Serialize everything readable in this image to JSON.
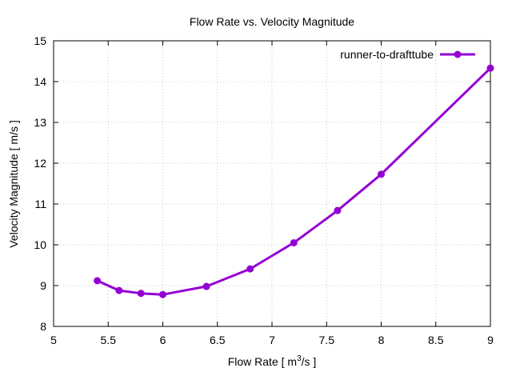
{
  "chart_data": {
    "type": "line",
    "title": "Flow Rate vs. Velocity Magnitude",
    "xlabel_prefix": "Flow Rate [ m",
    "xlabel_sup": "3",
    "xlabel_suffix": "/s ]",
    "ylabel": "Velocity Magnitude [ m/s ]",
    "xlim": [
      5,
      9
    ],
    "ylim": [
      8,
      15
    ],
    "xticks": [
      "5",
      "5.5",
      "6",
      "6.5",
      "7",
      "7.5",
      "8",
      "8.5",
      "9"
    ],
    "yticks": [
      "8",
      "9",
      "10",
      "11",
      "12",
      "13",
      "14",
      "15"
    ],
    "grid": true,
    "legend_position": "top-right",
    "series": [
      {
        "name": "runner-to-drafttube",
        "color": "#9400d3",
        "x": [
          5.4,
          5.6,
          5.8,
          6.0,
          6.4,
          6.8,
          7.2,
          7.6,
          8.0,
          9.0
        ],
        "y": [
          9.12,
          8.88,
          8.81,
          8.78,
          8.98,
          9.41,
          10.05,
          10.84,
          11.73,
          14.33
        ]
      }
    ]
  }
}
